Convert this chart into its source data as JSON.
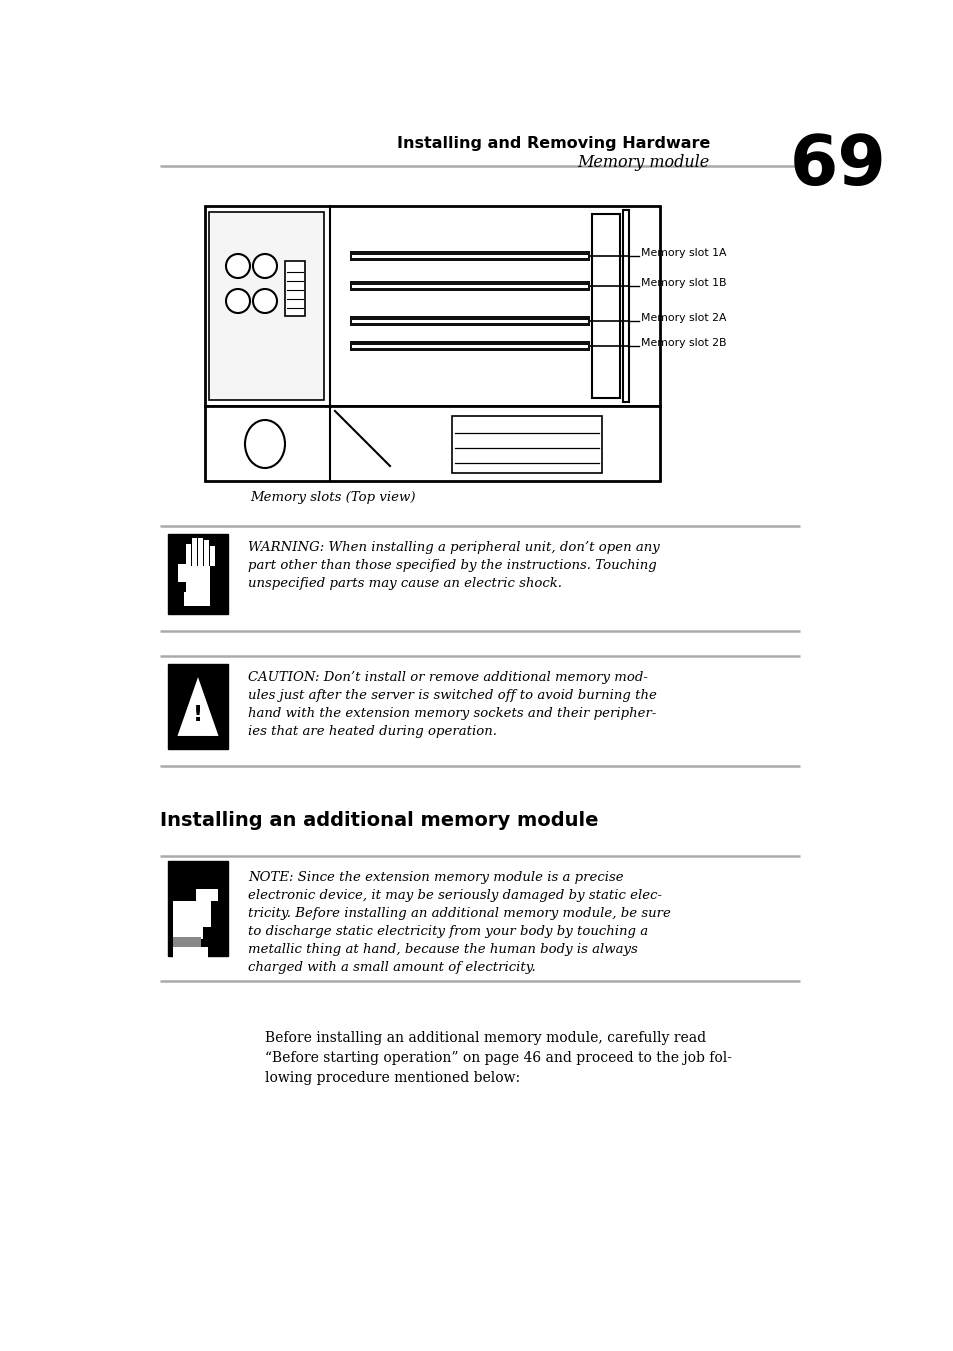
{
  "bg_color": "#ffffff",
  "header_title": "Installing and Removing Hardware",
  "header_subtitle": "Memory module",
  "page_number": "69",
  "diagram_caption": "Memory slots (Top view)",
  "memory_slot_labels": [
    "Memory slot 1A",
    "Memory slot 1B",
    "Memory slot 2A",
    "Memory slot 2B"
  ],
  "warning_lines": [
    "WARNING: When installing a peripheral unit, don’t open any",
    "part other than those specified by the instructions. Touching",
    "unspecified parts may cause an electric shock."
  ],
  "caution_lines": [
    "CAUTION: Don’t install or remove additional memory mod-",
    "ules just after the server is switched off to avoid burning the",
    "hand with the extension memory sockets and their peripher-",
    "ies that are heated during operation."
  ],
  "section_title": "Installing an additional memory module",
  "note_lines": [
    "NOTE: Since the extension memory module is a precise",
    "electronic device, it may be seriously damaged by static elec-",
    "tricity. Before installing an additional memory module, be sure",
    "to discharge static electricity from your body by touching a",
    "metallic thing at hand, because the human body is always",
    "charged with a small amount of electricity."
  ],
  "body_lines": [
    "Before installing an additional memory module, carefully read",
    "“Before starting operation” on page 46 and proceed to the job fol-",
    "lowing procedure mentioned below:"
  ],
  "line_color": "#bbbbbb",
  "text_color": "#000000"
}
